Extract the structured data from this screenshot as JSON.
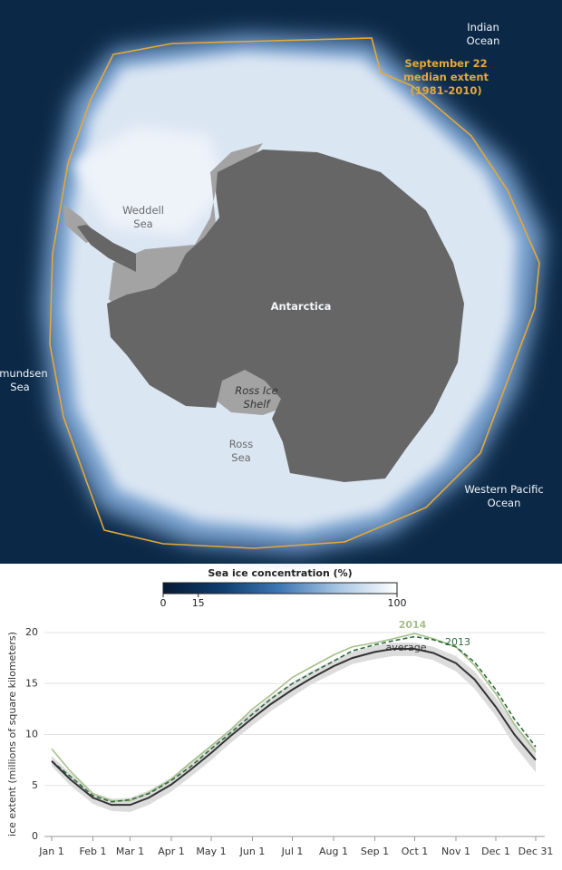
{
  "map": {
    "labels": {
      "indian": [
        "Indian",
        "Ocean"
      ],
      "median": [
        "September 22",
        "median extent",
        "(1981-2010)"
      ],
      "weddell": [
        "Weddell",
        "Sea"
      ],
      "antarctica": [
        "Antarctica"
      ],
      "amundsen": [
        "Amundsen",
        "Sea"
      ],
      "ross_shelf": [
        "Ross Ice",
        "Shelf"
      ],
      "ross_sea": [
        "Ross",
        "Sea"
      ],
      "pacific": [
        "Western Pacific",
        "Ocean"
      ]
    }
  },
  "chart_data": [
    {
      "type": "colorbar",
      "title": "Sea ice concentration (%)",
      "xlim": [
        0,
        100
      ],
      "xticks": [
        0,
        15,
        100
      ],
      "colors": [
        "#061a33",
        "#0e3d6e",
        "#3f78b4",
        "#a9c6e4",
        "#ffffff"
      ]
    },
    {
      "type": "line",
      "ylabel": "ice extent (millions of square kilometers)",
      "x": [
        1,
        15,
        32,
        46,
        60,
        74,
        91,
        105,
        121,
        135,
        152,
        166,
        182,
        196,
        213,
        227,
        244,
        258,
        274,
        288,
        305,
        319,
        335,
        349,
        365
      ],
      "xlim": [
        1,
        365
      ],
      "xticks": [
        {
          "value": 1,
          "label": "Jan 1"
        },
        {
          "value": 32,
          "label": "Feb 1"
        },
        {
          "value": 60,
          "label": "Mar 1"
        },
        {
          "value": 91,
          "label": "Apr 1"
        },
        {
          "value": 121,
          "label": "May 1"
        },
        {
          "value": 152,
          "label": "Jun 1"
        },
        {
          "value": 182,
          "label": "Jul 1"
        },
        {
          "value": 213,
          "label": "Aug 1"
        },
        {
          "value": 244,
          "label": "Sep 1"
        },
        {
          "value": 274,
          "label": "Oct 1"
        },
        {
          "value": 305,
          "label": "Nov 1"
        },
        {
          "value": 335,
          "label": "Dec 1"
        },
        {
          "value": 365,
          "label": "Dec 31"
        }
      ],
      "ylim": [
        0,
        20
      ],
      "yticks": [
        0,
        5,
        10,
        15,
        20
      ],
      "grid": true,
      "band": {
        "color": "#dcdcdc",
        "lower": [
          6.9,
          5.0,
          3.2,
          2.5,
          2.4,
          3.1,
          4.4,
          5.8,
          7.5,
          9.1,
          10.9,
          12.3,
          13.7,
          14.9,
          16.0,
          16.9,
          17.4,
          17.7,
          17.7,
          17.3,
          16.2,
          14.5,
          11.8,
          8.9,
          6.3
        ],
        "upper": [
          7.9,
          6.2,
          4.3,
          3.7,
          3.8,
          4.5,
          5.8,
          7.3,
          8.9,
          10.5,
          12.3,
          13.7,
          15.1,
          16.2,
          17.3,
          18.1,
          18.7,
          19.0,
          19.0,
          18.6,
          17.7,
          16.2,
          13.6,
          11.0,
          8.7
        ]
      },
      "series": [
        {
          "name": "2014",
          "color": "#a7bf8a",
          "dashed": false,
          "values": [
            8.6,
            6.4,
            4.2,
            3.5,
            3.5,
            4.3,
            5.6,
            7.2,
            8.9,
            10.4,
            12.5,
            13.9,
            15.6,
            16.6,
            17.8,
            18.6,
            19.0,
            19.4,
            19.9,
            19.4,
            18.6,
            16.8,
            14.0,
            11.0,
            8.3
          ]
        },
        {
          "name": "2013",
          "color": "#2d6a3e",
          "dashed": true,
          "values": [
            7.4,
            5.9,
            4.0,
            3.4,
            3.6,
            4.2,
            5.5,
            6.8,
            8.6,
            10.1,
            12.0,
            13.5,
            15.0,
            16.0,
            17.2,
            18.2,
            18.8,
            19.2,
            19.6,
            19.3,
            18.6,
            17.1,
            14.4,
            11.5,
            8.8
          ]
        },
        {
          "name": "average",
          "color": "#333333",
          "dashed": false,
          "values": [
            7.4,
            5.6,
            3.8,
            3.1,
            3.1,
            3.8,
            5.1,
            6.5,
            8.2,
            9.8,
            11.6,
            13.0,
            14.4,
            15.5,
            16.7,
            17.5,
            18.1,
            18.4,
            18.4,
            18.0,
            17.0,
            15.4,
            12.7,
            10.0,
            7.5
          ]
        }
      ]
    }
  ]
}
